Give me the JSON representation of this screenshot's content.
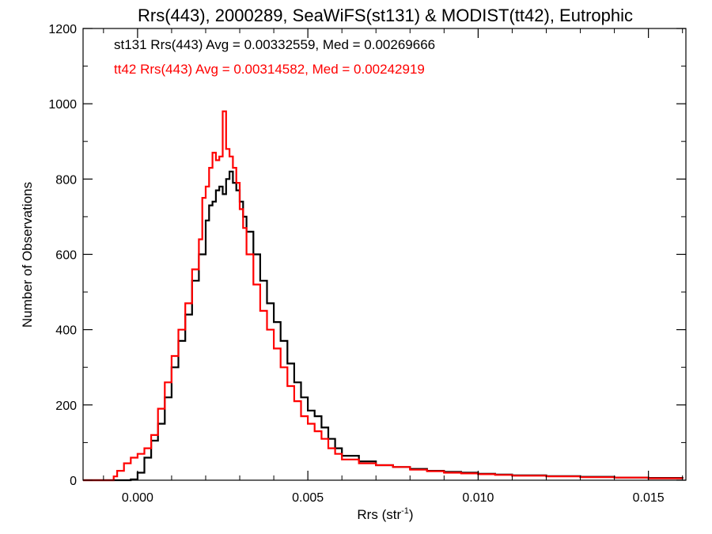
{
  "chart_data": {
    "type": "line",
    "style": "histogram-step",
    "title": "Rrs(443), 2000289, SeaWiFS(st131) & MODIST(tt42), Eutrophic",
    "xlabel_base": "Rrs (str",
    "xlabel_sup": "-1",
    "xlabel_end": ")",
    "ylabel": "Number of Observations",
    "xlim": [
      -0.0016,
      0.0161
    ],
    "ylim": [
      0,
      1200
    ],
    "grid": false,
    "legend_placement": "top-left",
    "x_ticks": [
      0.0,
      0.005,
      0.01,
      0.015
    ],
    "x_tick_labels": [
      "0.000",
      "0.005",
      "0.010",
      "0.015"
    ],
    "y_ticks": [
      0,
      200,
      400,
      600,
      800,
      1000,
      1200
    ],
    "y_tick_labels": [
      "0",
      "200",
      "400",
      "600",
      "800",
      "1000",
      "1200"
    ],
    "series": [
      {
        "name": "st131",
        "legend": "st131 Rrs(443) Avg = 0.00332559, Med = 0.00269666",
        "color": "#000000",
        "points": [
          [
            -0.0016,
            0
          ],
          [
            -0.0008,
            0
          ],
          [
            -0.0004,
            0
          ],
          [
            -0.0002,
            2
          ],
          [
            0.0,
            20
          ],
          [
            0.0002,
            60
          ],
          [
            0.0004,
            105
          ],
          [
            0.0006,
            150
          ],
          [
            0.0008,
            220
          ],
          [
            0.001,
            300
          ],
          [
            0.0012,
            370
          ],
          [
            0.0014,
            440
          ],
          [
            0.0016,
            530
          ],
          [
            0.0018,
            600
          ],
          [
            0.002,
            690
          ],
          [
            0.0021,
            730
          ],
          [
            0.0022,
            740
          ],
          [
            0.0023,
            770
          ],
          [
            0.0024,
            780
          ],
          [
            0.0025,
            760
          ],
          [
            0.0026,
            800
          ],
          [
            0.0027,
            820
          ],
          [
            0.0028,
            790
          ],
          [
            0.0029,
            770
          ],
          [
            0.003,
            740
          ],
          [
            0.0031,
            700
          ],
          [
            0.0032,
            660
          ],
          [
            0.0034,
            600
          ],
          [
            0.0036,
            530
          ],
          [
            0.0038,
            470
          ],
          [
            0.004,
            420
          ],
          [
            0.0042,
            370
          ],
          [
            0.0044,
            310
          ],
          [
            0.0046,
            260
          ],
          [
            0.0048,
            220
          ],
          [
            0.005,
            185
          ],
          [
            0.0052,
            170
          ],
          [
            0.0054,
            140
          ],
          [
            0.0056,
            110
          ],
          [
            0.0058,
            85
          ],
          [
            0.006,
            65
          ],
          [
            0.0065,
            50
          ],
          [
            0.007,
            40
          ],
          [
            0.0075,
            35
          ],
          [
            0.008,
            30
          ],
          [
            0.0085,
            25
          ],
          [
            0.009,
            22
          ],
          [
            0.0095,
            20
          ],
          [
            0.01,
            17
          ],
          [
            0.0105,
            15
          ],
          [
            0.011,
            13
          ],
          [
            0.012,
            11
          ],
          [
            0.013,
            9
          ],
          [
            0.014,
            7
          ],
          [
            0.015,
            6
          ],
          [
            0.016,
            4
          ]
        ]
      },
      {
        "name": "tt42",
        "legend": "tt42 Rrs(443) Avg = 0.00314582, Med = 0.00242919",
        "color": "#ff0000",
        "points": [
          [
            -0.0016,
            0
          ],
          [
            -0.0008,
            0
          ],
          [
            -0.0007,
            10
          ],
          [
            -0.0006,
            25
          ],
          [
            -0.0004,
            45
          ],
          [
            -0.0002,
            60
          ],
          [
            0.0,
            70
          ],
          [
            0.0002,
            85
          ],
          [
            0.0004,
            120
          ],
          [
            0.0006,
            190
          ],
          [
            0.0008,
            260
          ],
          [
            0.001,
            330
          ],
          [
            0.0012,
            400
          ],
          [
            0.0014,
            470
          ],
          [
            0.0016,
            560
          ],
          [
            0.0018,
            640
          ],
          [
            0.0019,
            750
          ],
          [
            0.002,
            780
          ],
          [
            0.0021,
            830
          ],
          [
            0.0022,
            870
          ],
          [
            0.0023,
            850
          ],
          [
            0.0024,
            860
          ],
          [
            0.0025,
            980
          ],
          [
            0.0026,
            880
          ],
          [
            0.0027,
            860
          ],
          [
            0.0028,
            830
          ],
          [
            0.0029,
            790
          ],
          [
            0.003,
            720
          ],
          [
            0.0031,
            670
          ],
          [
            0.0032,
            600
          ],
          [
            0.0034,
            520
          ],
          [
            0.0036,
            450
          ],
          [
            0.0038,
            400
          ],
          [
            0.004,
            350
          ],
          [
            0.0042,
            300
          ],
          [
            0.0044,
            250
          ],
          [
            0.0046,
            210
          ],
          [
            0.0048,
            170
          ],
          [
            0.005,
            150
          ],
          [
            0.0052,
            130
          ],
          [
            0.0054,
            110
          ],
          [
            0.0056,
            85
          ],
          [
            0.0058,
            70
          ],
          [
            0.006,
            55
          ],
          [
            0.0065,
            45
          ],
          [
            0.007,
            40
          ],
          [
            0.0075,
            35
          ],
          [
            0.008,
            28
          ],
          [
            0.0085,
            24
          ],
          [
            0.009,
            20
          ],
          [
            0.0095,
            18
          ],
          [
            0.01,
            16
          ],
          [
            0.0105,
            14
          ],
          [
            0.011,
            12
          ],
          [
            0.012,
            10
          ],
          [
            0.013,
            8
          ],
          [
            0.014,
            7
          ],
          [
            0.015,
            5
          ],
          [
            0.016,
            4
          ]
        ]
      }
    ]
  }
}
